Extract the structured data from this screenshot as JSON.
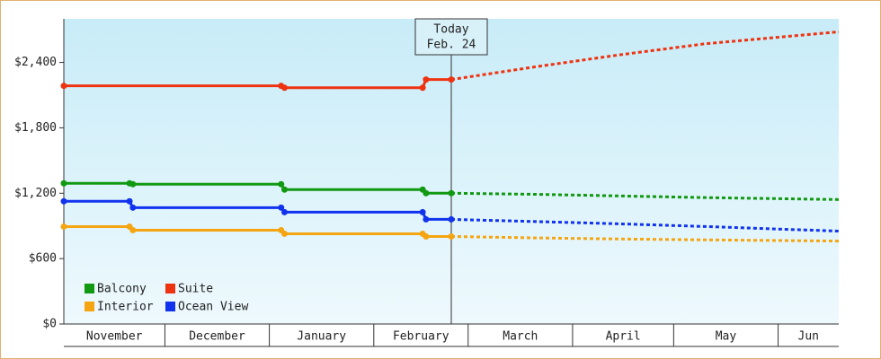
{
  "chart_data": {
    "type": "line",
    "xlim": [
      0,
      230
    ],
    "xticks": [
      {
        "value": 0,
        "label": "November"
      },
      {
        "value": 30,
        "label": "December"
      },
      {
        "value": 61,
        "label": "January"
      },
      {
        "value": 92,
        "label": "February"
      },
      {
        "value": 120,
        "label": "March"
      },
      {
        "value": 151,
        "label": "April"
      },
      {
        "value": 181,
        "label": "May"
      },
      {
        "value": 212,
        "label": "Jun"
      }
    ],
    "ylim": [
      0,
      2800
    ],
    "yticks": [
      {
        "value": 0,
        "label": "$0"
      },
      {
        "value": 600,
        "label": "$600"
      },
      {
        "value": 1200,
        "label": "$1,200"
      },
      {
        "value": 1800,
        "label": "$1,800"
      },
      {
        "value": 2400,
        "label": "$2,400"
      }
    ],
    "annotation": {
      "x": 115,
      "lines": [
        "Today",
        "Feb. 24"
      ]
    },
    "series": [
      {
        "name": "Balcony",
        "color": "#119911",
        "x": [
          0,
          19.5,
          20.5,
          64.5,
          65.5,
          106.5,
          107.5,
          115
        ],
        "values": [
          1291,
          1291,
          1283,
          1283,
          1233,
          1233,
          1200,
          1200
        ],
        "forecast_x": [
          115,
          140,
          165,
          190,
          230
        ],
        "forecast_values": [
          1200,
          1190,
          1175,
          1160,
          1142
        ]
      },
      {
        "name": "Suite",
        "color": "#ee3311",
        "x": [
          0,
          64.5,
          65.5,
          106.5,
          107.5,
          115
        ],
        "values": [
          2185,
          2185,
          2168,
          2168,
          2243,
          2243
        ],
        "forecast_x": [
          115,
          140,
          165,
          190,
          230
        ],
        "forecast_values": [
          2243,
          2360,
          2470,
          2570,
          2681
        ]
      },
      {
        "name": "Interior",
        "color": "#f5a511",
        "x": [
          0,
          19.5,
          20.5,
          64.5,
          65.5,
          106.5,
          107.5,
          115
        ],
        "values": [
          894,
          894,
          861,
          861,
          828,
          828,
          803,
          803
        ],
        "forecast_x": [
          115,
          140,
          165,
          190,
          230
        ],
        "forecast_values": [
          803,
          790,
          780,
          772,
          761
        ]
      },
      {
        "name": "Ocean View",
        "color": "#1133ee",
        "x": [
          0,
          19.5,
          20.5,
          64.5,
          65.5,
          106.5,
          107.5,
          115
        ],
        "values": [
          1126,
          1126,
          1068,
          1068,
          1026,
          1026,
          960,
          960
        ],
        "forecast_x": [
          115,
          140,
          165,
          190,
          230
        ],
        "forecast_values": [
          960,
          940,
          919,
          895,
          852
        ]
      }
    ]
  }
}
